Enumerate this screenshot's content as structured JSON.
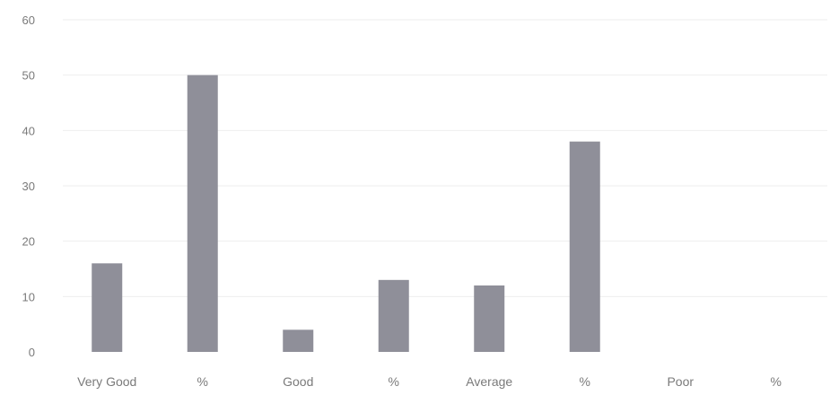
{
  "chart_data": {
    "type": "bar",
    "title": "",
    "xlabel": "",
    "ylabel": "",
    "categories": [
      "Very Good",
      "%",
      "Good",
      "%",
      "Average",
      "%",
      "Poor",
      "%"
    ],
    "values": [
      16,
      50,
      4,
      13,
      12,
      38,
      0,
      0
    ],
    "ylim": [
      0,
      60
    ],
    "yticks": [
      0,
      10,
      20,
      30,
      40,
      50,
      60
    ],
    "grid": true,
    "legend": "none",
    "bar_color": "#8f8f99",
    "grid_color": "#eeeeee"
  }
}
